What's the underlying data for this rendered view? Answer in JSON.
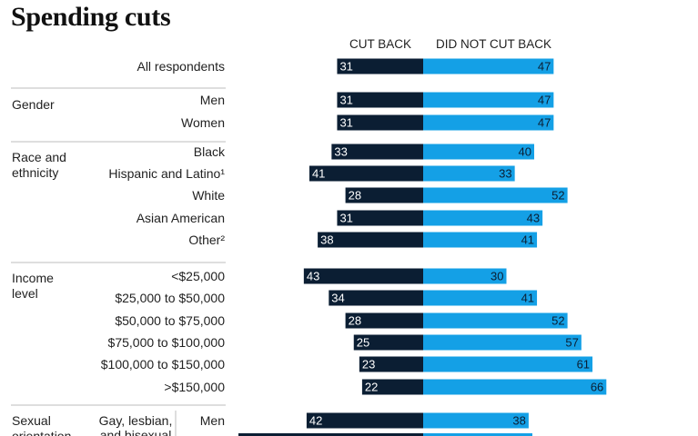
{
  "title": "Spending cuts",
  "columns": {
    "left": "CUT BACK",
    "right": "DID NOT CUT BACK"
  },
  "colors": {
    "cut_back": "#0b1e33",
    "did_not_cut_back": "#14a0e6",
    "separator": "#bdbdbd"
  },
  "chart_data": {
    "type": "bar",
    "orientation": "horizontal-diverging",
    "series": [
      {
        "name": "CUT BACK"
      },
      {
        "name": "DID NOT CUT BACK"
      }
    ],
    "rows": [
      {
        "group": "",
        "label": "All respondents",
        "cut_back": 31,
        "did_not_cut_back": 47
      },
      {
        "group": "Gender",
        "label": "Men",
        "cut_back": 31,
        "did_not_cut_back": 47
      },
      {
        "group": "Gender",
        "label": "Women",
        "cut_back": 31,
        "did_not_cut_back": 47
      },
      {
        "group": "Race and ethnicity",
        "label": "Black",
        "cut_back": 33,
        "did_not_cut_back": 40
      },
      {
        "group": "Race and ethnicity",
        "label": "Hispanic and Latino¹",
        "cut_back": 41,
        "did_not_cut_back": 33
      },
      {
        "group": "Race and ethnicity",
        "label": "White",
        "cut_back": 28,
        "did_not_cut_back": 52
      },
      {
        "group": "Race and ethnicity",
        "label": "Asian American",
        "cut_back": 31,
        "did_not_cut_back": 43
      },
      {
        "group": "Race and ethnicity",
        "label": "Other²",
        "cut_back": 38,
        "did_not_cut_back": 41
      },
      {
        "group": "Income level",
        "label": "<$25,000",
        "cut_back": 43,
        "did_not_cut_back": 30
      },
      {
        "group": "Income level",
        "label": "$25,000 to $50,000",
        "cut_back": 34,
        "did_not_cut_back": 41
      },
      {
        "group": "Income level",
        "label": "$50,000 to $75,000",
        "cut_back": 28,
        "did_not_cut_back": 52
      },
      {
        "group": "Income level",
        "label": "$75,000 to $100,000",
        "cut_back": 25,
        "did_not_cut_back": 57
      },
      {
        "group": "Income level",
        "label": "$100,000 to $150,000",
        "cut_back": 23,
        "did_not_cut_back": 61
      },
      {
        "group": "Income level",
        "label": ">$150,000",
        "cut_back": 22,
        "did_not_cut_back": 66
      },
      {
        "group": "Sexual orientation",
        "subgroup": "Gay, lesbian, and bisexual",
        "label": "Men",
        "cut_back": 42,
        "did_not_cut_back": 38
      }
    ],
    "groups": [
      {
        "label": "Gender",
        "lines": [
          "Gender"
        ]
      },
      {
        "label": "Race and ethnicity",
        "lines": [
          "Race and",
          "ethnicity"
        ]
      },
      {
        "label": "Income level",
        "lines": [
          "Income",
          "level"
        ]
      },
      {
        "label": "Sexual orientation",
        "lines": [
          "Sexual",
          "orientation"
        ]
      }
    ],
    "subgroups": [
      {
        "label": "Gay, lesbian, and bisexual",
        "lines": [
          "Gay, lesbian,",
          "and bisexual"
        ]
      }
    ]
  }
}
